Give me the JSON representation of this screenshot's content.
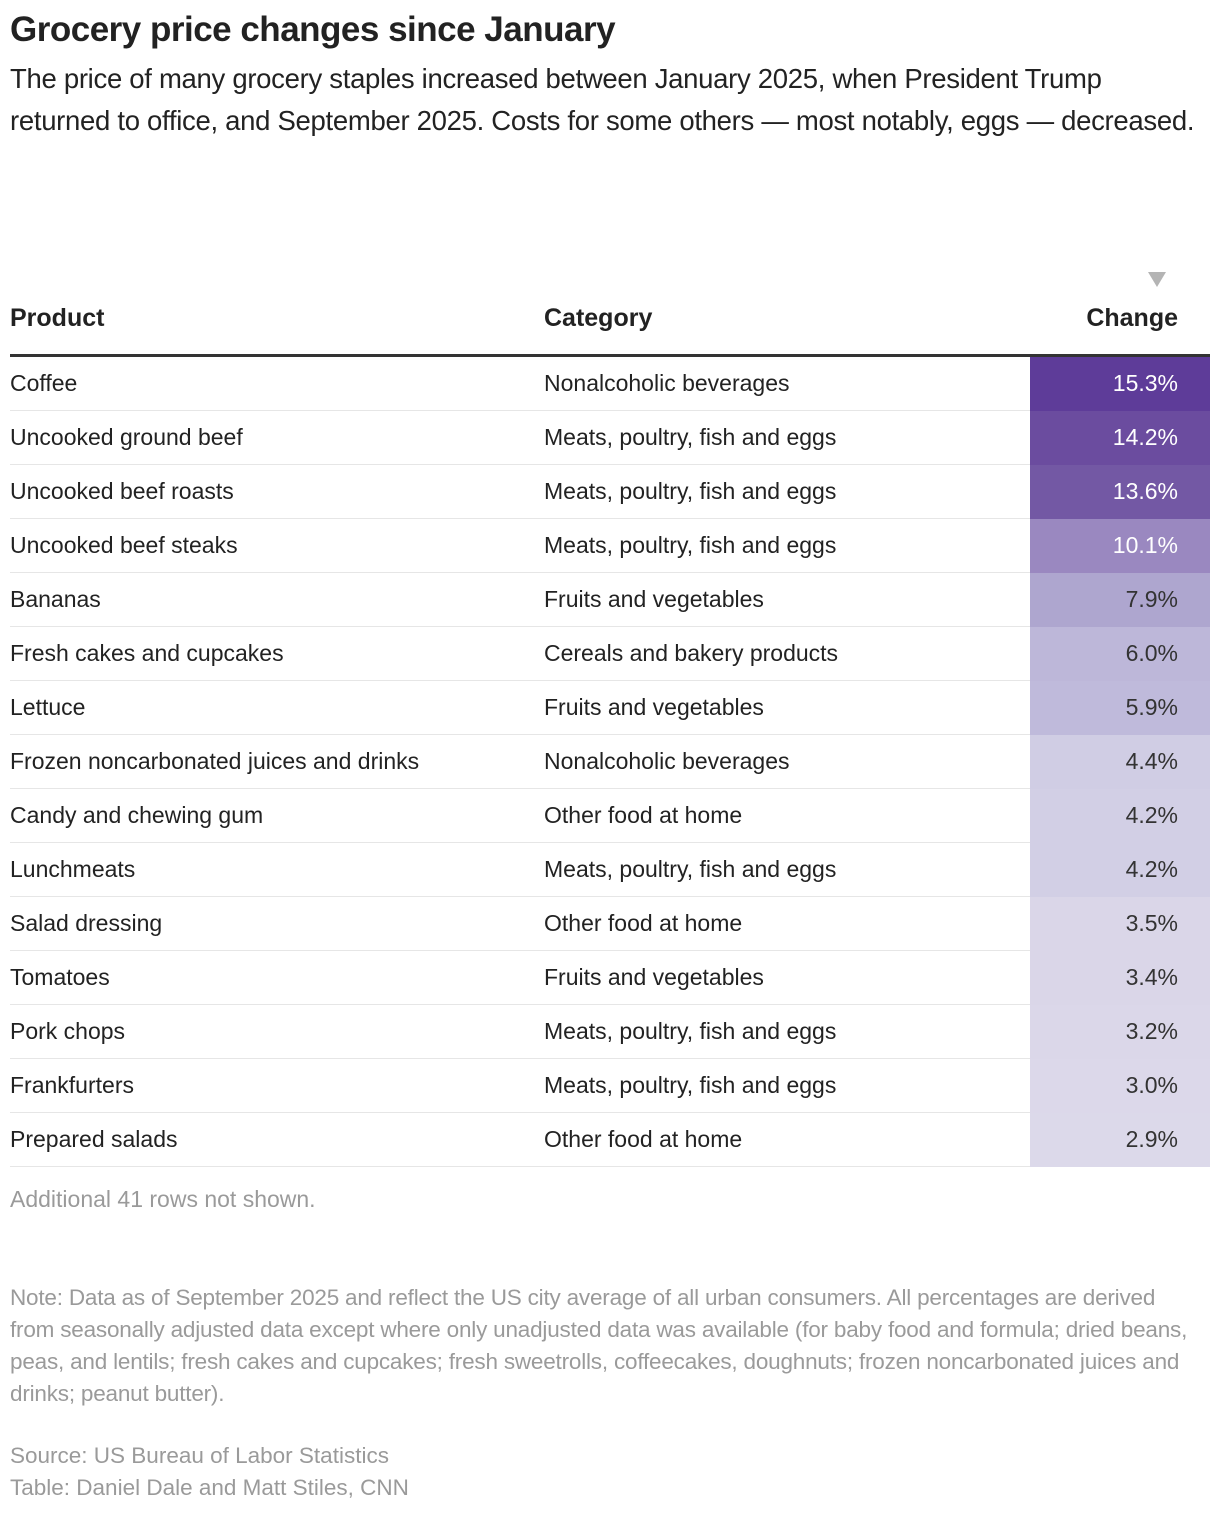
{
  "title": "Grocery price changes since January",
  "subtitle": "The price of many grocery staples increased between January 2025, when President Trump returned to office, and September 2025. Costs for some others — most notably, eggs — decreased.",
  "sort_icon": "triangle-down-icon",
  "chart_data": {
    "type": "table",
    "columns": [
      "Product",
      "Category",
      "Change"
    ],
    "sorted_by": "Change",
    "sort_order": "descending",
    "rows": [
      {
        "product": "Coffee",
        "category": "Nonalcoholic beverages",
        "change": "15.3%",
        "value": 15.3,
        "color": "#5e3c99",
        "text_color": "#ffffff"
      },
      {
        "product": "Uncooked ground beef",
        "category": "Meats, poultry, fish and eggs",
        "change": "14.2%",
        "value": 14.2,
        "color": "#6b4c9f",
        "text_color": "#ffffff"
      },
      {
        "product": "Uncooked beef roasts",
        "category": "Meats, poultry, fish and eggs",
        "change": "13.6%",
        "value": 13.6,
        "color": "#7358a4",
        "text_color": "#ffffff"
      },
      {
        "product": "Uncooked beef steaks",
        "category": "Meats, poultry, fish and eggs",
        "change": "10.1%",
        "value": 10.1,
        "color": "#9a88c0",
        "text_color": "#ffffff"
      },
      {
        "product": "Bananas",
        "category": "Fruits and vegetables",
        "change": "7.9%",
        "value": 7.9,
        "color": "#aea6cf",
        "text_color": "#333333"
      },
      {
        "product": "Fresh cakes and cupcakes",
        "category": "Cereals and bakery products",
        "change": "6.0%",
        "value": 6.0,
        "color": "#bdb7d9",
        "text_color": "#333333"
      },
      {
        "product": "Lettuce",
        "category": "Fruits and vegetables",
        "change": "5.9%",
        "value": 5.9,
        "color": "#bfbadb",
        "text_color": "#333333"
      },
      {
        "product": "Frozen noncarbonated juices and drinks",
        "category": "Nonalcoholic beverages",
        "change": "4.4%",
        "value": 4.4,
        "color": "#d0cde4",
        "text_color": "#333333"
      },
      {
        "product": "Candy and chewing gum",
        "category": "Other food at home",
        "change": "4.2%",
        "value": 4.2,
        "color": "#d2cfe5",
        "text_color": "#333333"
      },
      {
        "product": "Lunchmeats",
        "category": "Meats, poultry, fish and eggs",
        "change": "4.2%",
        "value": 4.2,
        "color": "#d2cfe5",
        "text_color": "#333333"
      },
      {
        "product": "Salad dressing",
        "category": "Other food at home",
        "change": "3.5%",
        "value": 3.5,
        "color": "#dad6e8",
        "text_color": "#333333"
      },
      {
        "product": "Tomatoes",
        "category": "Fruits and vegetables",
        "change": "3.4%",
        "value": 3.4,
        "color": "#dad6e8",
        "text_color": "#333333"
      },
      {
        "product": "Pork chops",
        "category": "Meats, poultry, fish and eggs",
        "change": "3.2%",
        "value": 3.2,
        "color": "#dbd7e9",
        "text_color": "#333333"
      },
      {
        "product": "Frankfurters",
        "category": "Meats, poultry, fish and eggs",
        "change": "3.0%",
        "value": 3.0,
        "color": "#dcd8ea",
        "text_color": "#333333"
      },
      {
        "product": "Prepared salads",
        "category": "Other food at home",
        "change": "2.9%",
        "value": 2.9,
        "color": "#dcd9ea",
        "text_color": "#333333"
      }
    ]
  },
  "more_rows": "Additional 41 rows not shown.",
  "note": "Note: Data as of September 2025 and reflect the US city average of all urban consumers. All percentages are derived from seasonally adjusted data except where only unadjusted data was available (for baby food and formula; dried beans, peas, and lentils; fresh cakes and cupcakes; fresh sweetrolls, coffeecakes, doughnuts; frozen noncarbonated juices and drinks; peanut butter).",
  "source": "Source: US Bureau of Labor Statistics",
  "credit": "Table: Daniel Dale and Matt Stiles, CNN"
}
